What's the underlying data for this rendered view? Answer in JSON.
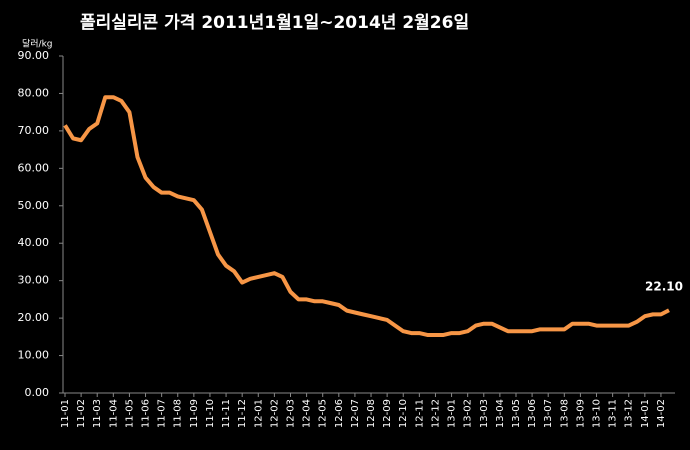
{
  "chart_data": {
    "type": "line",
    "title": "폴리실리콘 가격    2011년1월1일~2014년 2월26일",
    "y_unit": "달러/kg",
    "color": "#f79646",
    "categories": [
      "11-01",
      null,
      "11-02",
      null,
      "11-03",
      null,
      "11-04",
      null,
      "11-05",
      null,
      "11-06",
      null,
      "11-07",
      null,
      "11-08",
      null,
      "11-09",
      null,
      "11-10",
      null,
      "11-11",
      null,
      "11-12",
      null,
      "12-01",
      null,
      "12-02",
      null,
      "12-03",
      null,
      "12-04",
      null,
      "12-05",
      null,
      "12-06",
      null,
      "12-07",
      null,
      "12-08",
      null,
      "12-09",
      null,
      "12-10",
      null,
      "12-11",
      null,
      "12-12",
      null,
      "13-01",
      null,
      "13-02",
      null,
      "13-03",
      null,
      "13-04",
      null,
      "13-05",
      null,
      "13-06",
      null,
      "13-07",
      null,
      "13-08",
      null,
      "13-09",
      null,
      "13-10",
      null,
      "13-11",
      null,
      "13-12",
      null,
      "14-01",
      null,
      "14-02",
      null
    ],
    "values": [
      71.5,
      68,
      67.5,
      70.5,
      72,
      79,
      79,
      78,
      75,
      63,
      57.5,
      55,
      53.5,
      53.5,
      52.5,
      52,
      51.5,
      49,
      43,
      37,
      34,
      32.5,
      29.5,
      30.5,
      31,
      31.5,
      32,
      31,
      27,
      25,
      25,
      24.5,
      24.5,
      24,
      23.5,
      22,
      21.5,
      21,
      20.5,
      20,
      19.5,
      18,
      16.5,
      16,
      16,
      15.5,
      15.5,
      15.5,
      16,
      16,
      16.5,
      18,
      18.5,
      18.5,
      17.5,
      16.5,
      16.5,
      16.5,
      16.5,
      17,
      17,
      17,
      17,
      18.5,
      18.5,
      18.5,
      18,
      18,
      18,
      18,
      18,
      19,
      20.5,
      21,
      21,
      22.1
    ],
    "value_labels": [
      null,
      null,
      null,
      null,
      null,
      null,
      null,
      null,
      null,
      null,
      null,
      null,
      null,
      null,
      null,
      null,
      null,
      null,
      null,
      null,
      null,
      null,
      null,
      null,
      null,
      null,
      null,
      null,
      null,
      null,
      null,
      null,
      null,
      null,
      null,
      null,
      null,
      null,
      null,
      null,
      null,
      null,
      null,
      null,
      null,
      null,
      null,
      null,
      null,
      null,
      null,
      null,
      null,
      null,
      null,
      null,
      null,
      null,
      null,
      null,
      null,
      null,
      null,
      null,
      null,
      null,
      null,
      null,
      null,
      null,
      null,
      null,
      null,
      null,
      null,
      "22.10"
    ],
    "ylim": [
      0,
      90
    ],
    "yticks": [
      {
        "value": 0,
        "label": "0.00"
      },
      {
        "value": 10,
        "label": "10.00"
      },
      {
        "value": 20,
        "label": "20.00"
      },
      {
        "value": 30,
        "label": "30.00"
      },
      {
        "value": 40,
        "label": "40.00"
      },
      {
        "value": 50,
        "label": "50.00"
      },
      {
        "value": 60,
        "label": "60.00"
      },
      {
        "value": 70,
        "label": "70.00"
      },
      {
        "value": 80,
        "label": "80.00"
      },
      {
        "value": 90,
        "label": "90.00"
      }
    ],
    "grid": false
  }
}
